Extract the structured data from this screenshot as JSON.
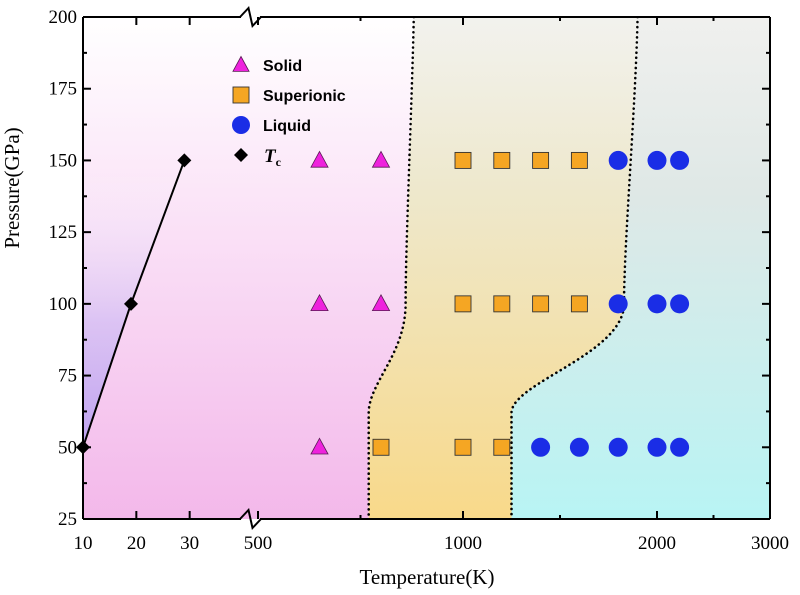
{
  "chart_data": {
    "type": "scatter",
    "xlabel": "Temperature(K)",
    "ylabel": "Pressure(GPa)",
    "ylim": [
      25,
      200
    ],
    "x_axis": {
      "broken": true,
      "low_segment": {
        "range": [
          10,
          40
        ],
        "ticks": [
          10,
          20,
          30
        ]
      },
      "high_segment": {
        "range": [
          500,
          3000
        ],
        "ticks": [
          500,
          1000,
          2000,
          3000
        ]
      },
      "tick_labels": [
        "10",
        "20",
        "30",
        "500",
        "1000",
        "2000",
        "3000"
      ]
    },
    "y_ticks": [
      25,
      50,
      75,
      100,
      125,
      150,
      175,
      200
    ],
    "y_tick_labels": [
      "25",
      "50",
      "75",
      "100",
      "125",
      "150",
      "175",
      "200"
    ],
    "legend": {
      "placement": "top-left",
      "entries": [
        {
          "label": "Solid",
          "marker": "triangle",
          "color": "#ee22dd"
        },
        {
          "label": "Superionic",
          "marker": "square",
          "color": "#f5a623"
        },
        {
          "label": "Liquid",
          "marker": "circle",
          "color": "#1a2de6"
        },
        {
          "label": "T",
          "subscript": "c",
          "marker": "diamond",
          "color": "#000000"
        }
      ]
    },
    "series": [
      {
        "name": "Solid",
        "points": [
          {
            "x": 650,
            "y": 150
          },
          {
            "x": 800,
            "y": 150
          },
          {
            "x": 650,
            "y": 100
          },
          {
            "x": 800,
            "y": 100
          },
          {
            "x": 650,
            "y": 50
          }
        ]
      },
      {
        "name": "Superionic",
        "points": [
          {
            "x": 1000,
            "y": 150
          },
          {
            "x": 1200,
            "y": 150
          },
          {
            "x": 1400,
            "y": 150
          },
          {
            "x": 1600,
            "y": 150
          },
          {
            "x": 1000,
            "y": 100
          },
          {
            "x": 1200,
            "y": 100
          },
          {
            "x": 1400,
            "y": 100
          },
          {
            "x": 1600,
            "y": 100
          },
          {
            "x": 800,
            "y": 50
          },
          {
            "x": 1000,
            "y": 50
          },
          {
            "x": 1200,
            "y": 50
          }
        ]
      },
      {
        "name": "Liquid",
        "points": [
          {
            "x": 1800,
            "y": 150
          },
          {
            "x": 2000,
            "y": 150
          },
          {
            "x": 2200,
            "y": 150
          },
          {
            "x": 1800,
            "y": 100
          },
          {
            "x": 2000,
            "y": 100
          },
          {
            "x": 2200,
            "y": 100
          },
          {
            "x": 1400,
            "y": 50
          },
          {
            "x": 1600,
            "y": 50
          },
          {
            "x": 1800,
            "y": 50
          },
          {
            "x": 2000,
            "y": 50
          },
          {
            "x": 2200,
            "y": 50
          }
        ]
      },
      {
        "name": "Tc",
        "line": true,
        "points": [
          {
            "x": 10,
            "y": 50
          },
          {
            "x": 19,
            "y": 100
          },
          {
            "x": 29,
            "y": 150
          }
        ]
      }
    ],
    "boundaries": [
      {
        "style": "dotted",
        "points": [
          {
            "x": 880,
            "y": 200
          },
          {
            "x": 860,
            "y": 100
          },
          {
            "x": 770,
            "y": 62
          },
          {
            "x": 770,
            "y": 25
          }
        ]
      },
      {
        "style": "dotted",
        "points": [
          {
            "x": 1900,
            "y": 200
          },
          {
            "x": 1830,
            "y": 100
          },
          {
            "x": 1250,
            "y": 62
          },
          {
            "x": 1250,
            "y": 25
          }
        ]
      }
    ],
    "regions": [
      {
        "phase": "Solid",
        "color": "#f3b8ea"
      },
      {
        "phase": "Superionic",
        "color": "#f8d98a"
      },
      {
        "phase": "Liquid",
        "color": "#b8f4f4"
      },
      {
        "phase": "low-temperature",
        "color": "#a98ef0"
      }
    ]
  }
}
